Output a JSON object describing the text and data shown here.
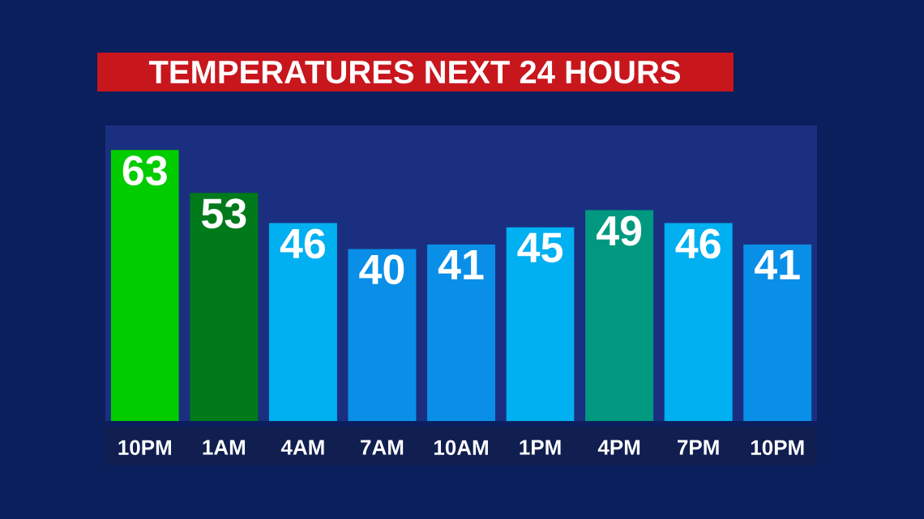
{
  "chart_data": {
    "type": "bar",
    "title": "TEMPERATURES NEXT 24 HOURS",
    "categories": [
      "10PM",
      "1AM",
      "4AM",
      "7AM",
      "10AM",
      "1PM",
      "4PM",
      "7PM",
      "10PM"
    ],
    "values": [
      63,
      53,
      46,
      40,
      41,
      45,
      49,
      46,
      41
    ],
    "colors": [
      "#00cc00",
      "#007a1a",
      "#00b0f0",
      "#0a8fe8",
      "#0a8fe8",
      "#00b0f0",
      "#009980",
      "#00b0f0",
      "#0a8fe8"
    ],
    "data_labels": true
  }
}
